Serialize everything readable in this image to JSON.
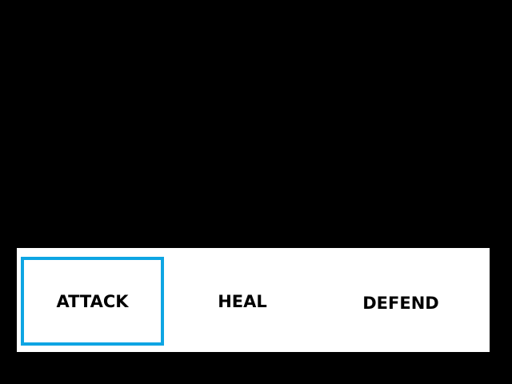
{
  "battle_menu": {
    "selected_index": 0,
    "selection_color": "#0ea5e3",
    "options": [
      {
        "label": "ATTACK"
      },
      {
        "label": "HEAL"
      },
      {
        "label": "DEFEND"
      }
    ]
  }
}
